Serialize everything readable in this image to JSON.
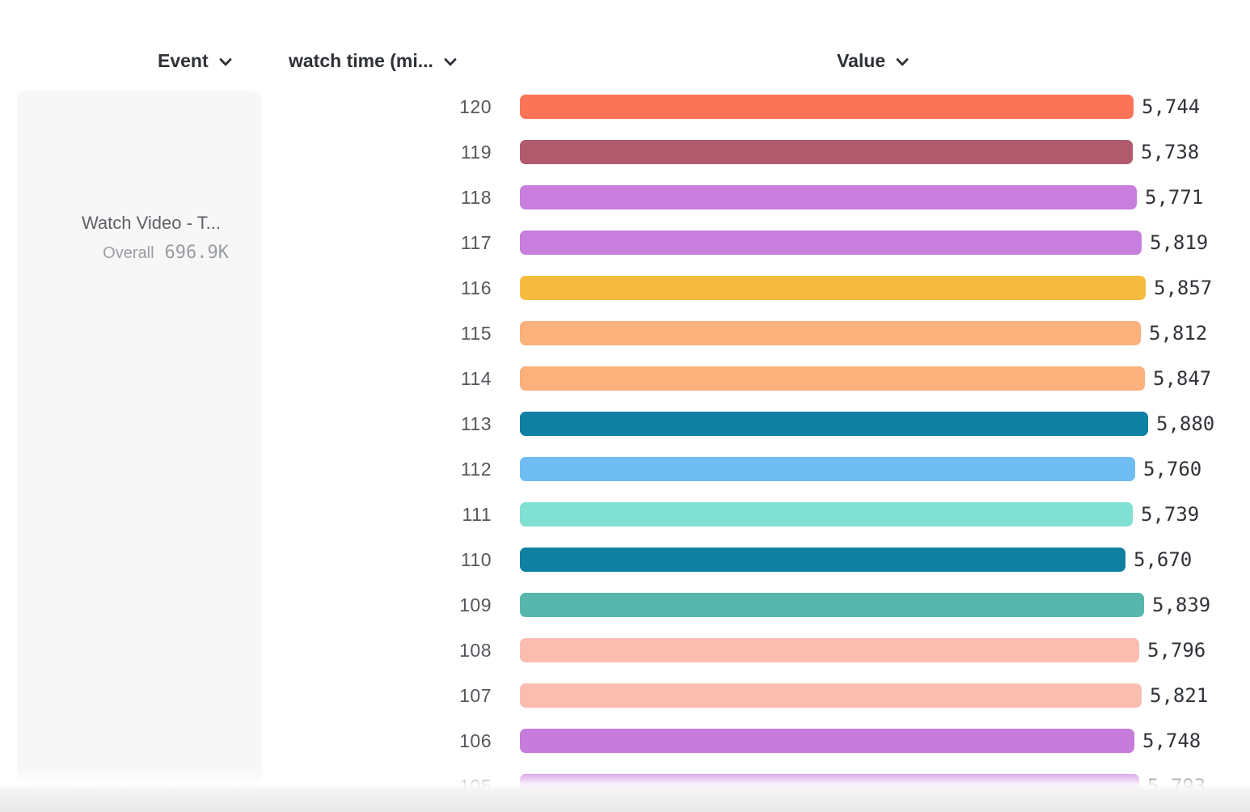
{
  "header": {
    "event_label": "Event",
    "watch_time_label": "watch time (mi...",
    "value_label": "Value"
  },
  "event_panel": {
    "title": "Watch Video - T...",
    "segment_label": "Overall",
    "segment_value": "696.9K"
  },
  "colors": {
    "header_text": "#2E3135",
    "row_label_text": "#54575C",
    "value_text": "#303338",
    "panel_bg": "#F7F7F8",
    "panel_title_text": "#5E6165",
    "panel_secondary_text": "#9A9DA2",
    "chevron": "#2F3237"
  },
  "chart_data": {
    "type": "bar",
    "orientation": "horizontal",
    "title": "",
    "category_axis_label": "watch time (mi...",
    "value_axis_label": "Value",
    "categories": [
      "120",
      "119",
      "118",
      "117",
      "116",
      "115",
      "114",
      "113",
      "112",
      "111",
      "110",
      "109",
      "108",
      "107",
      "106",
      "105"
    ],
    "values": [
      5744,
      5738,
      5771,
      5819,
      5857,
      5812,
      5847,
      5880,
      5760,
      5739,
      5670,
      5839,
      5796,
      5821,
      5748,
      5793
    ],
    "value_labels": [
      "5,744",
      "5,738",
      "5,771",
      "5,819",
      "5,857",
      "5,812",
      "5,847",
      "5,880",
      "5,760",
      "5,739",
      "5,670",
      "5,839",
      "5,796",
      "5,821",
      "5,748",
      "5,793"
    ],
    "bar_colors": [
      "#FB7457",
      "#B05A6D",
      "#C87EDC",
      "#C87EDC",
      "#F6BB3E",
      "#FCB07C",
      "#FCB07C",
      "#0F80A1",
      "#70BDF3",
      "#80E0D1",
      "#0F80A1",
      "#58B7AC",
      "#FCBDB1",
      "#FCBDB1",
      "#C77BDB",
      "#C77BDB"
    ],
    "xlim": [
      0,
      5880
    ],
    "grid": false,
    "legend": false
  }
}
